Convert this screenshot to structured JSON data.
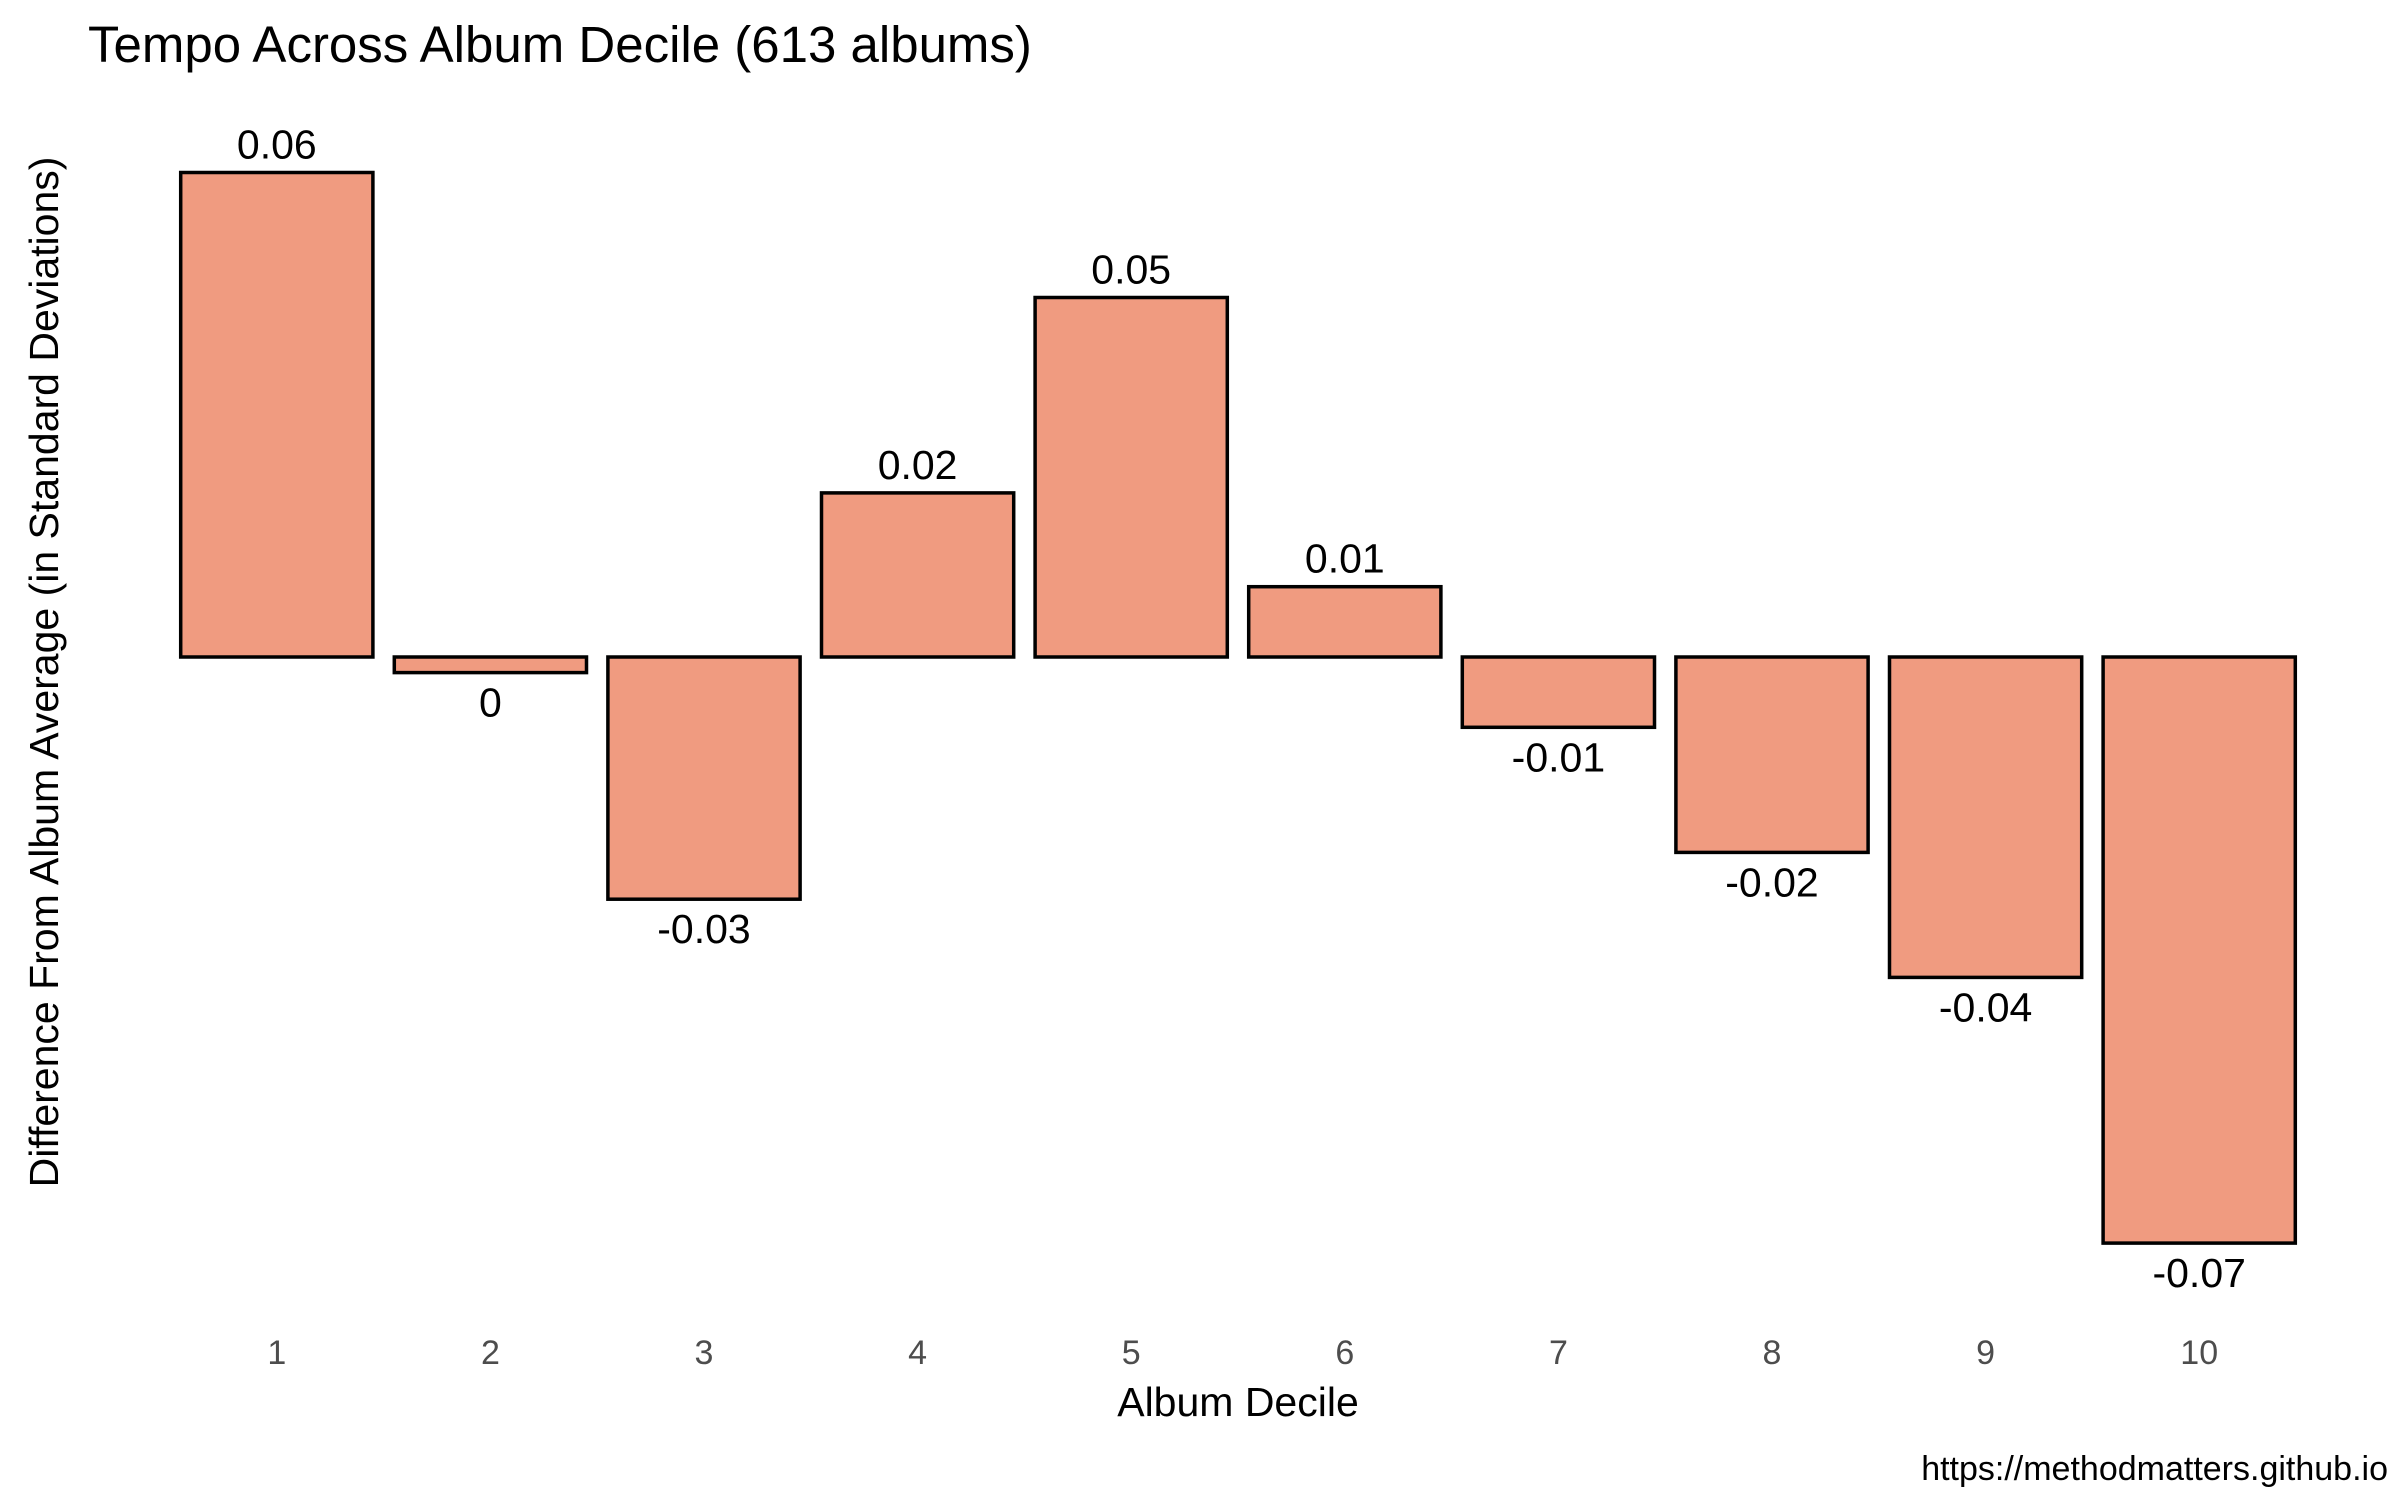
{
  "chart_data": {
    "type": "bar",
    "title": "Tempo Across Album Decile (613 albums)",
    "xlabel": "Album Decile",
    "ylabel": "Difference From Album Average (in Standard Deviations)",
    "categories": [
      "1",
      "2",
      "3",
      "4",
      "5",
      "6",
      "7",
      "8",
      "9",
      "10"
    ],
    "values": [
      0.062,
      -0.002,
      -0.031,
      0.021,
      0.046,
      0.009,
      -0.009,
      -0.025,
      -0.041,
      -0.075
    ],
    "data_labels": [
      "0.06",
      "0",
      "-0.03",
      "0.02",
      "0.05",
      "0.01",
      "-0.01",
      "-0.02",
      "-0.04",
      "-0.07"
    ],
    "ylim": [
      -0.085,
      0.07
    ],
    "grid": false,
    "bar_color": "#F09B80",
    "bar_outline_color": "#000000",
    "caption": "https://methodmatters.github.io"
  }
}
